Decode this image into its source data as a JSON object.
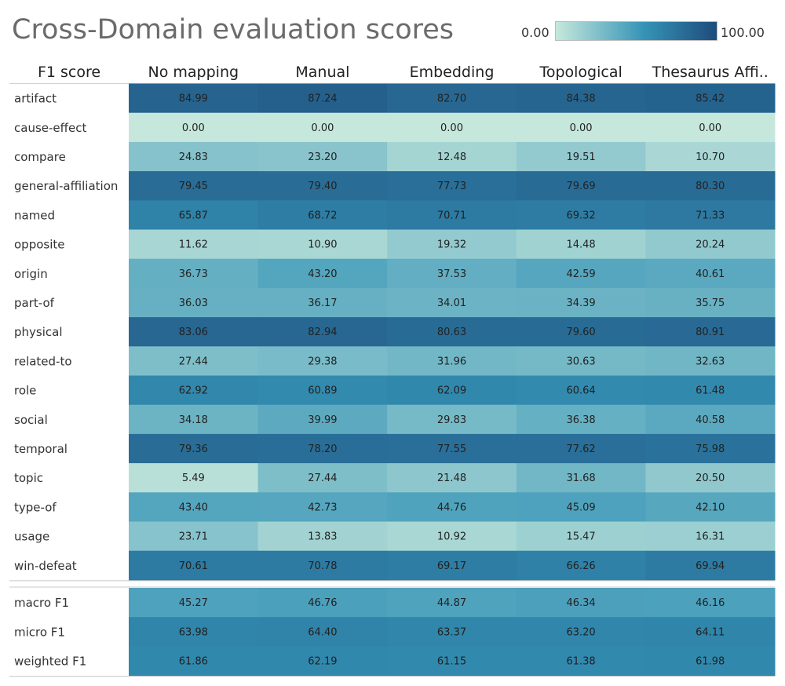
{
  "chart_data": {
    "type": "heatmap",
    "title": "Cross-Domain evaluation scores",
    "corner_label": "F1 score",
    "columns": [
      "No mapping",
      "Manual",
      "Embedding",
      "Topological",
      "Thesaurus Affi.."
    ],
    "legend": {
      "min_label": "0.00",
      "max_label": "100.00",
      "min": 0,
      "max": 100
    },
    "colors": {
      "low": "#c6e8dc",
      "mid": "#3593b6",
      "high": "#1e4c7c"
    },
    "groups": [
      {
        "rows": [
          {
            "label": "artifact",
            "values": [
              84.99,
              87.24,
              82.7,
              84.38,
              85.42
            ]
          },
          {
            "label": "cause-effect",
            "values": [
              0.0,
              0.0,
              0.0,
              0.0,
              0.0
            ]
          },
          {
            "label": "compare",
            "values": [
              24.83,
              23.2,
              12.48,
              19.51,
              10.7
            ]
          },
          {
            "label": "general-affiliation",
            "values": [
              79.45,
              79.4,
              77.73,
              79.69,
              80.3
            ]
          },
          {
            "label": "named",
            "values": [
              65.87,
              68.72,
              70.71,
              69.32,
              71.33
            ]
          },
          {
            "label": "opposite",
            "values": [
              11.62,
              10.9,
              19.32,
              14.48,
              20.24
            ]
          },
          {
            "label": "origin",
            "values": [
              36.73,
              43.2,
              37.53,
              42.59,
              40.61
            ]
          },
          {
            "label": "part-of",
            "values": [
              36.03,
              36.17,
              34.01,
              34.39,
              35.75
            ]
          },
          {
            "label": "physical",
            "values": [
              83.06,
              82.94,
              80.63,
              79.6,
              80.91
            ]
          },
          {
            "label": "related-to",
            "values": [
              27.44,
              29.38,
              31.96,
              30.63,
              32.63
            ]
          },
          {
            "label": "role",
            "values": [
              62.92,
              60.89,
              62.09,
              60.64,
              61.48
            ]
          },
          {
            "label": "social",
            "values": [
              34.18,
              39.99,
              29.83,
              36.38,
              40.58
            ]
          },
          {
            "label": "temporal",
            "values": [
              79.36,
              78.2,
              77.55,
              77.62,
              75.98
            ]
          },
          {
            "label": "topic",
            "values": [
              5.49,
              27.44,
              21.48,
              31.68,
              20.5
            ]
          },
          {
            "label": "type-of",
            "values": [
              43.4,
              42.73,
              44.76,
              45.09,
              42.1
            ]
          },
          {
            "label": "usage",
            "values": [
              23.71,
              13.83,
              10.92,
              15.47,
              16.31
            ]
          },
          {
            "label": "win-defeat",
            "values": [
              70.61,
              70.78,
              69.17,
              66.26,
              69.94
            ]
          }
        ]
      },
      {
        "rows": [
          {
            "label": "macro F1",
            "values": [
              45.27,
              46.76,
              44.87,
              46.34,
              46.16
            ]
          },
          {
            "label": "micro F1",
            "values": [
              63.98,
              64.4,
              63.37,
              63.2,
              64.11
            ]
          },
          {
            "label": "weighted F1",
            "values": [
              61.86,
              62.19,
              61.15,
              61.38,
              61.98
            ]
          }
        ]
      }
    ]
  }
}
